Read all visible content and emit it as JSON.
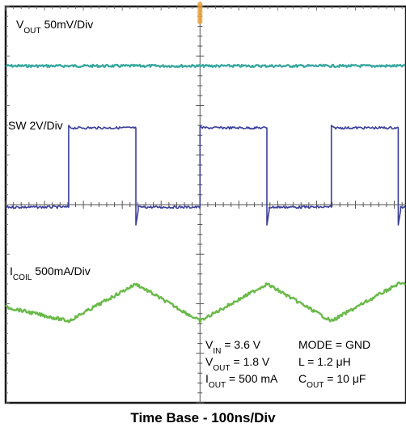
{
  "chart_data": {
    "type": "line",
    "title": "",
    "xlabel": "Time Base - 100ns/Div",
    "ylabel": "",
    "x_divisions": 10,
    "y_divisions": 8,
    "trigger_marker_color": "#e8a13a",
    "series": [
      {
        "name": "VOUT 50mV/Div",
        "label_main": "V",
        "label_sub": "OUT",
        "label_rest": " 50mV/Div",
        "color": "#3aa8a0",
        "shape": "flat",
        "level_div": 6.8
      },
      {
        "name": "SW 2V/Div",
        "label_main": "SW 2V/Div",
        "label_sub": "",
        "label_rest": "",
        "color": "#3b3f9a",
        "shape": "square",
        "high_div": 5.55,
        "low_div": 3.95,
        "rising_edges_div": [
          1.62,
          5.0,
          8.38
        ],
        "falling_edges_div": [
          3.35,
          6.72,
          10.1
        ],
        "period_div": 3.38
      },
      {
        "name": "ICOIL 500mA/Div",
        "label_main": "I",
        "label_sub": "COIL",
        "label_rest": " 500mA/Div",
        "color": "#6aba4a",
        "shape": "triangle",
        "valleys_div": [
          1.62,
          5.0,
          8.38
        ],
        "peaks_div": [
          3.35,
          6.72,
          10.1
        ],
        "peak_level_div": 2.4,
        "valley_level_div": 1.65
      }
    ],
    "conditions": {
      "left": [
        {
          "main": "V",
          "sub": "IN",
          "rest": " = 3.6 V"
        },
        {
          "main": "V",
          "sub": "OUT",
          "rest": " = 1.8 V"
        },
        {
          "main": "I",
          "sub": "OUT",
          "rest": " = 500 mA"
        }
      ],
      "right": [
        {
          "main": "MODE = GND",
          "sub": "",
          "rest": ""
        },
        {
          "main": "L = 1.2 μH",
          "sub": "",
          "rest": ""
        },
        {
          "main": "C",
          "sub": "OUT",
          "rest": " = 10 μF"
        }
      ]
    }
  }
}
